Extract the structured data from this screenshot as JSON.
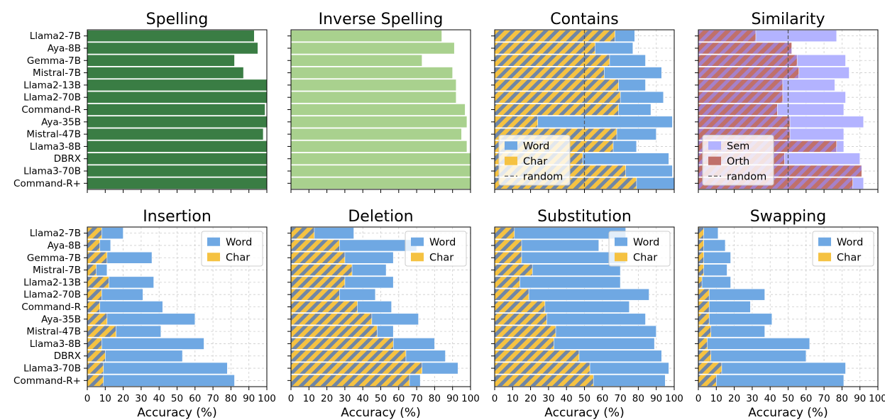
{
  "chart_data": {
    "type": "bar",
    "orientation": "horizontal",
    "models": [
      "Llama2-7B",
      "Aya-8B",
      "Gemma-7B",
      "Mistral-7B",
      "Llama2-13B",
      "Llama2-70B",
      "Command-R",
      "Aya-35B",
      "Mistral-47B",
      "Llama3-8B",
      "DBRX",
      "Llama3-70B",
      "Command-R+"
    ],
    "xticks": [
      "0",
      "10",
      "20",
      "30",
      "40",
      "50",
      "60",
      "70",
      "80",
      "90",
      "100"
    ],
    "xlim": [
      0,
      100
    ],
    "xlabel": "Accuracy (%)",
    "colors": {
      "spelling": "#3a7d44",
      "inverse": "#a9d18e",
      "word": "#6fa8e3",
      "char": "#f5c242",
      "sem": "#b3b3ff",
      "orth": "#c0706a"
    },
    "panels": [
      {
        "title": "Spelling",
        "kind": "single",
        "color": "#3a7d44",
        "values": [
          93,
          95,
          82,
          87,
          100,
          100,
          99,
          100,
          98,
          100,
          100,
          100,
          100
        ]
      },
      {
        "title": "Inverse Spelling",
        "kind": "single",
        "color": "#a9d18e",
        "values": [
          84,
          91,
          73,
          90,
          92,
          92,
          97,
          98,
          95,
          98,
          100,
          100,
          100
        ]
      },
      {
        "title": "Contains",
        "kind": "pair",
        "series": [
          {
            "name": "Word",
            "values": [
              78,
              77,
              84,
              93,
              84,
              94,
              87,
              99,
              90,
              79,
              97,
              99,
              100
            ]
          },
          {
            "name": "Char",
            "values": [
              67,
              56,
              64,
              61,
              69,
              70,
              69,
              24,
              68,
              66,
              49,
              73,
              79
            ]
          }
        ],
        "legend": [
          "Word",
          "Char",
          "random"
        ],
        "legend_loc": "lower-left",
        "random": 50
      },
      {
        "title": "Similarity",
        "kind": "pair",
        "series": [
          {
            "name": "Sem",
            "values": [
              77,
              37,
              82,
              84,
              76,
              82,
              81,
              92,
              81,
              81,
              90,
              91,
              92
            ]
          },
          {
            "name": "Orth",
            "values": [
              32,
              52,
              55,
              56,
              47,
              47,
              44,
              51,
              51,
              77,
              48,
              91,
              86
            ]
          }
        ],
        "legend": [
          "Sem",
          "Orth",
          "random"
        ],
        "legend_loc": "lower-left",
        "random": 50
      },
      {
        "title": "Insertion",
        "kind": "pair",
        "series": [
          {
            "name": "Word",
            "values": [
              20,
              13,
              36,
              11,
              37,
              31,
              42,
              60,
              41,
              65,
              53,
              78,
              82
            ]
          },
          {
            "name": "Char",
            "values": [
              8,
              7,
              11,
              5,
              12,
              8,
              7,
              11,
              16,
              8,
              10,
              9,
              9
            ]
          }
        ],
        "legend": [
          "Word",
          "Char"
        ],
        "legend_loc": "upper-right"
      },
      {
        "title": "Deletion",
        "kind": "pair",
        "series": [
          {
            "name": "Word",
            "values": [
              35,
              70,
              57,
              53,
              57,
              47,
              56,
              71,
              57,
              80,
              86,
              93,
              72
            ]
          },
          {
            "name": "Char",
            "values": [
              13,
              27,
              30,
              34,
              30,
              27,
              37,
              45,
              48,
              57,
              64,
              73,
              66
            ]
          }
        ],
        "legend": [
          "Word",
          "Char"
        ],
        "legend_loc": "upper-right"
      },
      {
        "title": "Substitution",
        "kind": "pair",
        "series": [
          {
            "name": "Word",
            "values": [
              73,
              58,
              73,
              70,
              70,
              86,
              75,
              84,
              90,
              89,
              93,
              97,
              95
            ]
          },
          {
            "name": "Char",
            "values": [
              11,
              15,
              15,
              21,
              14,
              19,
              28,
              29,
              34,
              33,
              47,
              53,
              55
            ]
          }
        ],
        "legend": [
          "Word",
          "Char"
        ],
        "legend_loc": "upper-right"
      },
      {
        "title": "Swapping",
        "kind": "pair",
        "series": [
          {
            "name": "Word",
            "values": [
              11,
              15,
              18,
              16,
              18,
              37,
              29,
              41,
              37,
              62,
              60,
              82,
              81
            ]
          },
          {
            "name": "Char",
            "values": [
              3,
              3,
              3,
              3,
              2,
              6,
              6,
              6,
              7,
              5,
              7,
              13,
              10
            ]
          }
        ],
        "legend": [
          "Word",
          "Char"
        ],
        "legend_loc": "upper-right"
      }
    ]
  }
}
